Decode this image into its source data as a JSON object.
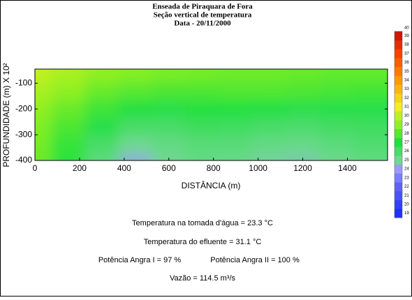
{
  "chart_data": {
    "type": "contour",
    "title": [
      "Enseada de Piraquara de Fora",
      "Seção vertical de temperatura",
      "Data - 20/11/2000"
    ],
    "x_label": "DISTÂNCIA (m)",
    "y_label": "PROFUNDIDADE (m) X 10²",
    "xlim": [
      0,
      1580
    ],
    "xticks": [
      0,
      200,
      400,
      600,
      800,
      1000,
      1200,
      1400
    ],
    "ylim": [
      -400,
      -45
    ],
    "yticks": [
      -100,
      -200,
      -300,
      -400
    ],
    "x": [
      0,
      150,
      300,
      450,
      600,
      750,
      900,
      1050,
      1200,
      1350,
      1500
    ],
    "y": [
      -60,
      -130,
      -200,
      -270,
      -340,
      -400
    ],
    "z": [
      [
        30,
        29.5,
        29,
        28.8,
        28.6,
        28.5,
        28.4,
        28.4,
        28.3,
        28.2,
        28.2
      ],
      [
        29.5,
        29,
        28.3,
        28,
        27.8,
        27.8,
        27.9,
        27.9,
        27.8,
        27.7,
        27.6
      ],
      [
        29,
        28.3,
        27.5,
        27,
        26.8,
        27,
        27,
        26.9,
        26.7,
        26.8,
        26.8
      ],
      [
        28.7,
        27.8,
        26.8,
        26,
        26,
        26.3,
        26.2,
        26,
        25.9,
        26.1,
        26.2
      ],
      [
        28.5,
        27.4,
        26,
        25,
        25.3,
        25.6,
        25.6,
        25.3,
        25.2,
        25.5,
        25.8
      ],
      [
        28.3,
        27.2,
        25.5,
        24.4,
        25,
        25.3,
        25.2,
        24.9,
        24.8,
        25.1,
        25.4
      ]
    ],
    "colorscale": [
      {
        "value": 19,
        "color": "#2030ff"
      },
      {
        "value": 22,
        "color": "#6060ff"
      },
      {
        "value": 24,
        "color": "#9a9aff"
      },
      {
        "value": 25,
        "color": "#70d890"
      },
      {
        "value": 27,
        "color": "#20e040"
      },
      {
        "value": 29,
        "color": "#90f020"
      },
      {
        "value": 31,
        "color": "#f0f020"
      },
      {
        "value": 34,
        "color": "#ff9900"
      },
      {
        "value": 37,
        "color": "#ff4000"
      },
      {
        "value": 40,
        "color": "#c00000"
      }
    ],
    "colorbar_lim": [
      19,
      40
    ],
    "colorbar_ticks": [
      19,
      20,
      21,
      22,
      23,
      24,
      25,
      26,
      27,
      28,
      29,
      30,
      31,
      32,
      33,
      34,
      35,
      36,
      37,
      38,
      39,
      40
    ],
    "annotations": [
      "Temperatura na tomada d'água = 23.3 °C",
      "Temperatura do efluente = 31.1 °C",
      "Potência Angra I  = 97 %",
      "Potência Angra II = 100 %",
      "Vazão = 114.5 m³/s"
    ]
  }
}
